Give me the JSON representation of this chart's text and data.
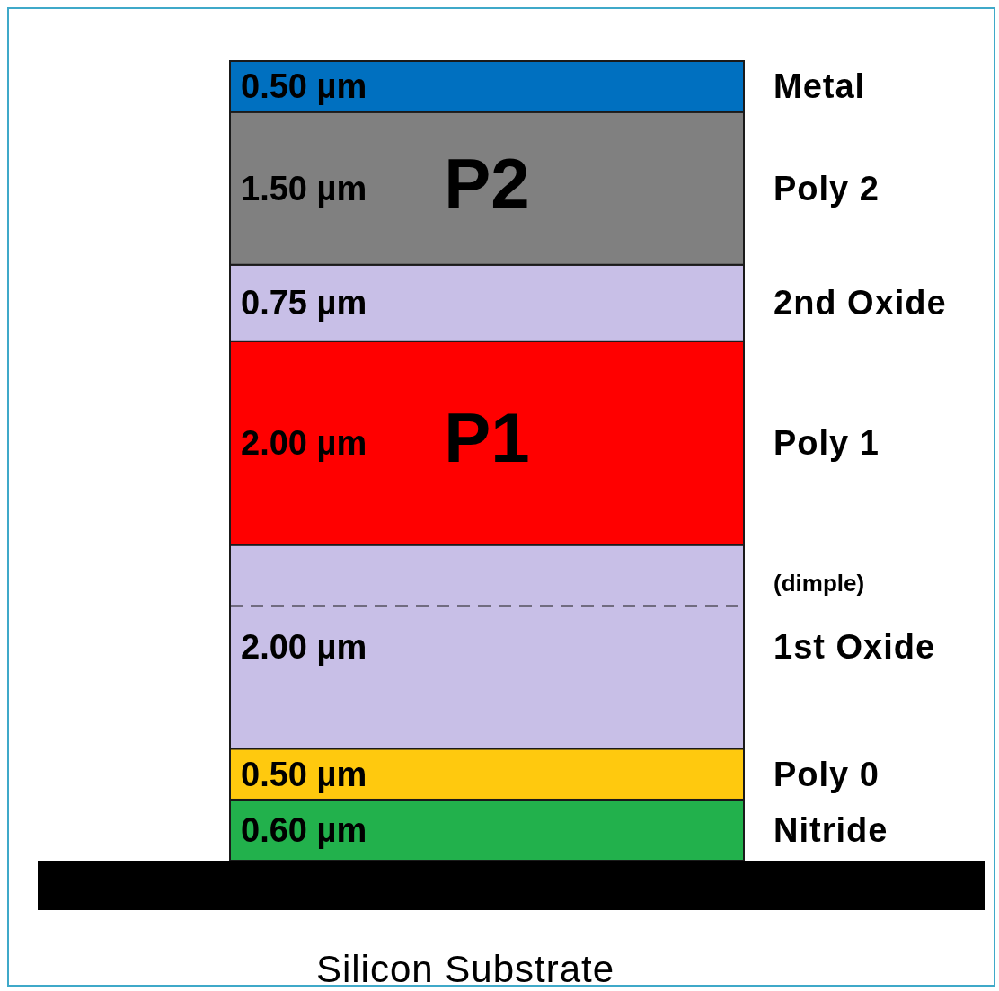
{
  "chart_data": {
    "type": "bar",
    "stacked": true,
    "categories": [
      null
    ],
    "xlabel": "Silicon Substrate",
    "series": [
      {
        "name": "Nitride",
        "color": "#22b14c",
        "values": [
          0.6
        ],
        "value_labels": [
          "0.60 µm"
        ]
      },
      {
        "name": "Poly 0",
        "color": "#ffc90e",
        "values": [
          0.5
        ],
        "value_labels": [
          "0.50 µm"
        ]
      },
      {
        "name": "1st Oxide",
        "color": "#c8bfe7",
        "values": [
          2.0
        ],
        "value_labels": [
          "2.00 µm"
        ]
      },
      {
        "name": "Poly 1",
        "color": "#ff0000",
        "values": [
          2.0
        ],
        "value_labels": [
          "2.00 µm"
        ]
      },
      {
        "name": "2nd Oxide",
        "color": "#c8bfe7",
        "values": [
          0.75
        ],
        "value_labels": [
          "0.75 µm"
        ]
      },
      {
        "name": "Poly 2",
        "color": "#808080",
        "values": [
          1.5
        ],
        "value_labels": [
          "1.50 µm"
        ]
      },
      {
        "name": "Metal",
        "color": "#0070c0",
        "values": [
          0.5
        ],
        "value_labels": [
          "0.50 µm"
        ]
      }
    ],
    "ref_lines": [
      {
        "axis": "y",
        "value": 2.5,
        "label": "(dimple)",
        "line_style": "dashed"
      }
    ],
    "annotations": [
      "P1",
      "P2"
    ]
  }
}
